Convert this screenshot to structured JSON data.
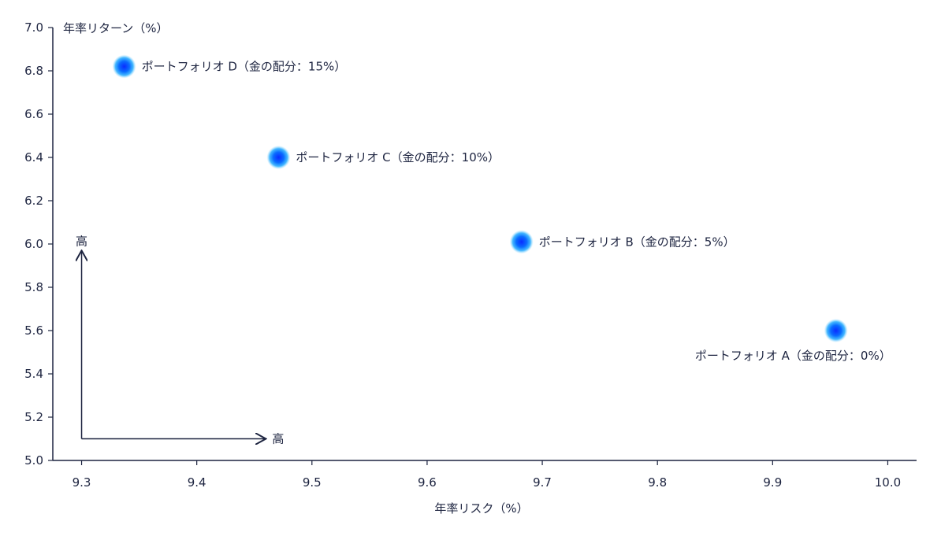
{
  "chart_data": {
    "type": "scatter",
    "xlabel": "年率リスク（%）",
    "ylabel": "年率リターン（%）",
    "xlim": [
      9.275,
      10.025
    ],
    "ylim": [
      5.0,
      7.0
    ],
    "x_ticks": [
      "9.3",
      "9.4",
      "9.5",
      "9.6",
      "9.7",
      "9.8",
      "9.9",
      "10.0"
    ],
    "y_ticks": [
      "5.0",
      "5.2",
      "5.4",
      "5.6",
      "5.8",
      "6.0",
      "6.2",
      "6.4",
      "6.6",
      "6.8",
      "7.0"
    ],
    "grid": false,
    "points": [
      {
        "label": "ポートフォリオ D（金の配分：15%）",
        "x": 9.337,
        "y": 6.82
      },
      {
        "label": "ポートフォリオ C（金の配分：10%）",
        "x": 9.471,
        "y": 6.4
      },
      {
        "label": "ポートフォリオ B（金の配分：5%）",
        "x": 9.682,
        "y": 6.01
      },
      {
        "label": "ポートフォリオ A（金の配分：0%）",
        "x": 9.955,
        "y": 5.6
      }
    ],
    "annotation_arrows": {
      "vertical_label": "高",
      "horizontal_label": "高",
      "origin": {
        "x": 9.3,
        "y": 5.1
      },
      "vertical_end": {
        "x": 9.3,
        "y": 5.97
      },
      "horizontal_end": {
        "x": 9.46,
        "y": 5.1
      }
    },
    "point_color": "#0a7cf5"
  }
}
